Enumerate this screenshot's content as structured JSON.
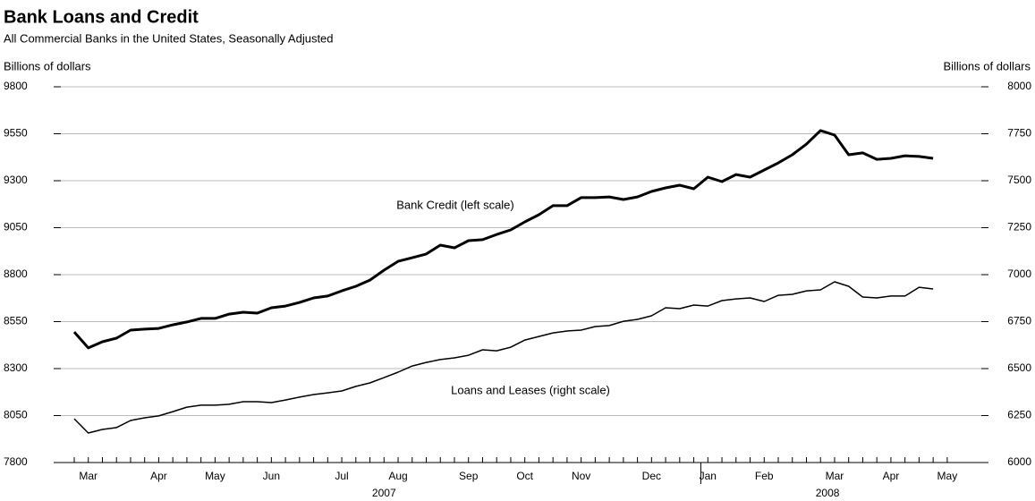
{
  "chart_data": {
    "type": "line",
    "title": "Bank Loans and Credit",
    "subtitle": "All Commercial Banks in the United States, Seasonally Adjusted",
    "y_label": "Billions of dollars",
    "y2_label": "Billions of dollars",
    "categories": [
      null,
      "Mar",
      null,
      null,
      null,
      null,
      "Apr",
      null,
      null,
      null,
      "May",
      null,
      null,
      null,
      "Jun",
      null,
      null,
      null,
      null,
      "Jul",
      null,
      null,
      null,
      "Aug",
      null,
      null,
      null,
      null,
      "Sep",
      null,
      null,
      null,
      "Oct",
      null,
      null,
      null,
      "Nov",
      null,
      null,
      null,
      null,
      "Dec",
      null,
      null,
      null,
      "Jan",
      null,
      null,
      null,
      "Feb",
      null,
      null,
      null,
      null,
      "Mar",
      null,
      null,
      null,
      "Apr",
      null,
      null,
      null,
      "May"
    ],
    "years": [
      "2007",
      "2008"
    ],
    "series": [
      {
        "name": "Bank Credit (left scale)",
        "color": "#000000",
        "axis": "y",
        "values": [
          8495,
          8410,
          8443,
          8462,
          8505,
          8510,
          8514,
          8533,
          8548,
          8567,
          8567,
          8590,
          8600,
          8595,
          8624,
          8633,
          8652,
          8676,
          8686,
          8714,
          8738,
          8771,
          8824,
          8871,
          8890,
          8910,
          8957,
          8943,
          8981,
          8986,
          9014,
          9038,
          9081,
          9119,
          9167,
          9167,
          9210,
          9210,
          9214,
          9200,
          9214,
          9243,
          9262,
          9276,
          9257,
          9319,
          9295,
          9333,
          9319,
          9357,
          9395,
          9438,
          9495,
          9567,
          9543,
          9438,
          9448,
          9414,
          9419,
          9433,
          9429,
          9419,
          null
        ]
      },
      {
        "name": "Loans and Leases (right scale)",
        "color": "#000000",
        "axis": "y2",
        "values": [
          6233,
          6157,
          6176,
          6186,
          6224,
          6238,
          6248,
          6271,
          6295,
          6305,
          6305,
          6310,
          6324,
          6324,
          6319,
          6333,
          6348,
          6362,
          6371,
          6381,
          6405,
          6424,
          6452,
          6481,
          6514,
          6533,
          6548,
          6557,
          6571,
          6600,
          6595,
          6614,
          6652,
          6671,
          6690,
          6700,
          6705,
          6724,
          6729,
          6752,
          6762,
          6781,
          6824,
          6819,
          6838,
          6833,
          6862,
          6871,
          6876,
          6857,
          6890,
          6895,
          6914,
          6919,
          6962,
          6938,
          6881,
          6876,
          6886,
          6886,
          6933,
          6924,
          null
        ]
      }
    ],
    "ylim": [
      7800,
      9800
    ],
    "yticks": [
      7800,
      8050,
      8300,
      8550,
      8800,
      9050,
      9300,
      9550,
      9800
    ],
    "y2lim": [
      6000,
      8000
    ],
    "y2ticks": [
      6000,
      6250,
      6500,
      6750,
      7000,
      7250,
      7500,
      7750,
      8000
    ],
    "grid": true
  }
}
